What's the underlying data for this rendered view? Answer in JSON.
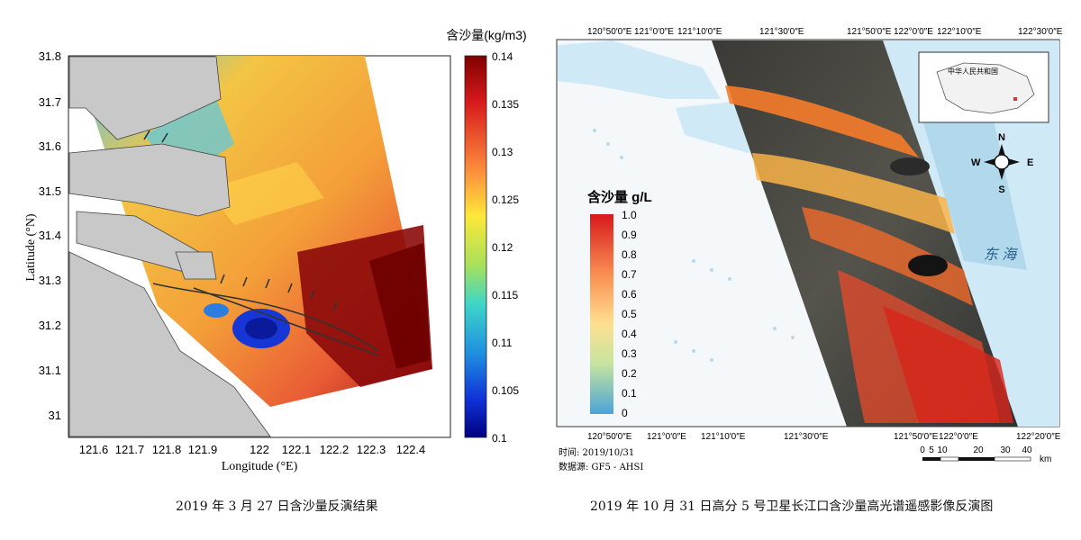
{
  "left_panel": {
    "colorbar_title": "含沙量(kg/m3)",
    "colorbar_ticks": [
      "0.14",
      "0.135",
      "0.13",
      "0.125",
      "0.12",
      "0.115",
      "0.11",
      "0.105",
      "0.1"
    ],
    "y_ticks": [
      "31.8",
      "31.7",
      "31.6",
      "31.5",
      "31.4",
      "31.3",
      "31.2",
      "31.1",
      "31"
    ],
    "x_ticks": [
      "121.6",
      "121.7",
      "121.8",
      "121.9",
      "122",
      "122.1",
      "122.2",
      "122.3",
      "122.4"
    ],
    "ylabel": "Latitude (°N)",
    "xlabel": "Longitude (°E)",
    "caption": "2019 年 3 月 27 日含沙量反演结果"
  },
  "right_panel": {
    "top_ticks": [
      "120°50′0″E",
      "121°0′0″E",
      "121°10′0″E",
      "121°30′0″E",
      "121°50′0″E",
      "122°0′0″E",
      "122°10′0″E",
      "122°30′0″E"
    ],
    "bottom_ticks": [
      "120°50′0″E",
      "121°0′0″E",
      "121°10′0″E",
      "121°30′0″E",
      "121°50′0″E",
      "122°0′0″E",
      "122°20′0″E"
    ],
    "legend_title": "含沙量 g/L",
    "legend_ticks": [
      "1.0",
      "0.9",
      "0.8",
      "0.7",
      "0.6",
      "0.5",
      "0.4",
      "0.3",
      "0.2",
      "0.1",
      "0"
    ],
    "sea_label": "东    海",
    "inset_title": "中华人民共和国",
    "compass": {
      "n": "N",
      "s": "S",
      "e": "E",
      "w": "W"
    },
    "time_label": "时间: 2019/10/31",
    "source_label": "数据源: GF5 - AHSI",
    "scale_ticks": [
      "0",
      "5",
      "10",
      "20",
      "30",
      "40"
    ],
    "scale_unit": "km",
    "caption": "2019 年 10 月 31 日高分 5 号卫星长江口含沙量高光谱遥感影像反演图"
  },
  "colors": {
    "land_gray": "#c8c8c8",
    "sea_light_blue": "#cfe9f7",
    "sediment_high": "#8b0000",
    "sediment_low": "#00008b"
  }
}
